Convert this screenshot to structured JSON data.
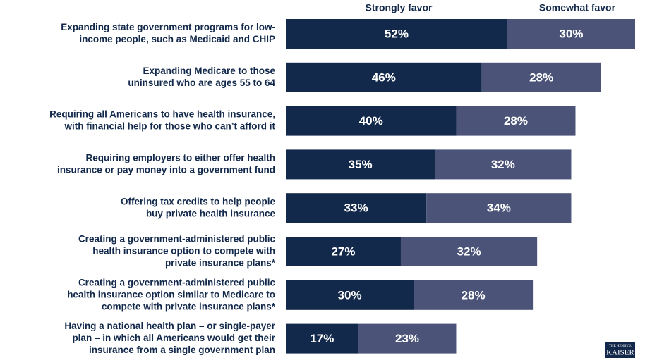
{
  "chart_data": {
    "type": "stacked-bar-horizontal",
    "categories": [
      [
        "Expanding state government programs for low-",
        "income people, such as Medicaid and CHIP"
      ],
      [
        "Expanding Medicare to those",
        "uninsured who are ages 55 to 64"
      ],
      [
        "Requiring all Americans to have health insurance,",
        "with financial help for those who can’t afford it"
      ],
      [
        "Requiring employers to either offer health",
        "insurance or pay money into a government fund"
      ],
      [
        "Offering tax credits to help people",
        "buy private health insurance"
      ],
      [
        "Creating a government-administered public",
        "health insurance option to compete with",
        "private insurance plans*"
      ],
      [
        "Creating a government-administered public",
        "health insurance option similar to Medicare to",
        "compete with private insurance plans*"
      ],
      [
        "Having a national health plan – or single-payer",
        "plan – in which all Americans would get their",
        "insurance from a single government plan"
      ]
    ],
    "series": [
      {
        "name": "Strongly favor",
        "color": "#13294b",
        "values": [
          52,
          46,
          40,
          35,
          33,
          27,
          30,
          17
        ],
        "value_labels": [
          "52%",
          "46%",
          "40%",
          "35%",
          "33%",
          "27%",
          "30%",
          "17%"
        ]
      },
      {
        "name": "Somewhat favor",
        "color": "#4b5478",
        "values": [
          30,
          28,
          28,
          32,
          34,
          32,
          28,
          23
        ],
        "value_labels": [
          "30%",
          "28%",
          "28%",
          "32%",
          "34%",
          "32%",
          "28%",
          "23%"
        ]
      }
    ],
    "xlim": [
      0,
      82
    ],
    "logo": [
      "THE HENRY J.",
      "KAISER"
    ]
  }
}
